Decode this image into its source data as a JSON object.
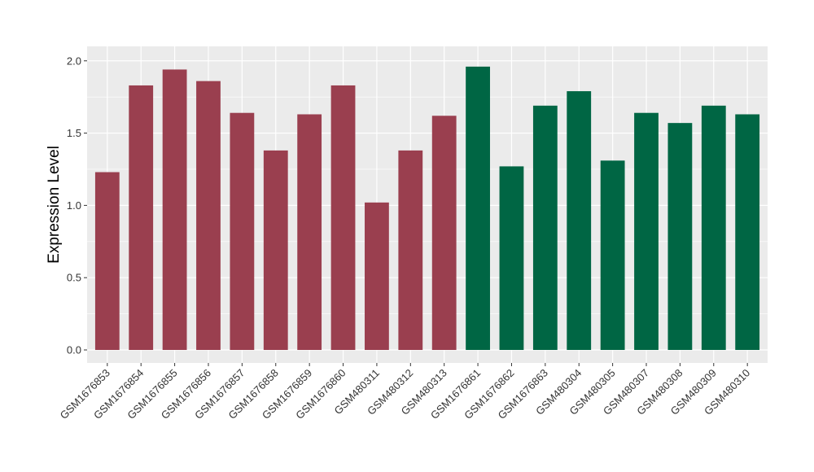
{
  "chart_data": {
    "type": "bar",
    "title": "",
    "xlabel": "",
    "ylabel": "Expression Level",
    "ylim": [
      -0.09,
      2.1
    ],
    "yticks": [
      0.0,
      0.5,
      1.0,
      1.5,
      2.0
    ],
    "ytick_labels": [
      "0.0",
      "0.5",
      "1.0",
      "1.5",
      "2.0"
    ],
    "grid": true,
    "legend": "none",
    "categories": [
      "GSM1676853",
      "GSM1676854",
      "GSM1676855",
      "GSM1676856",
      "GSM1676857",
      "GSM1676858",
      "GSM1676859",
      "GSM1676860",
      "GSM480311",
      "GSM480312",
      "GSM480313",
      "GSM1676861",
      "GSM1676862",
      "GSM1676863",
      "GSM480304",
      "GSM480305",
      "GSM480307",
      "GSM480308",
      "GSM480309",
      "GSM480310"
    ],
    "values": [
      1.23,
      1.83,
      1.94,
      1.86,
      1.64,
      1.38,
      1.63,
      1.83,
      1.02,
      1.38,
      1.62,
      1.96,
      1.27,
      1.69,
      1.79,
      1.31,
      1.64,
      1.57,
      1.69,
      1.63
    ],
    "groups": [
      "a",
      "a",
      "a",
      "a",
      "a",
      "a",
      "a",
      "a",
      "a",
      "a",
      "a",
      "b",
      "b",
      "b",
      "b",
      "b",
      "b",
      "b",
      "b",
      "b"
    ],
    "group_colors": {
      "a": "#9a3f4f",
      "b": "#006644"
    },
    "panel_color": "#ebebeb",
    "grid_color": "#ffffff"
  }
}
